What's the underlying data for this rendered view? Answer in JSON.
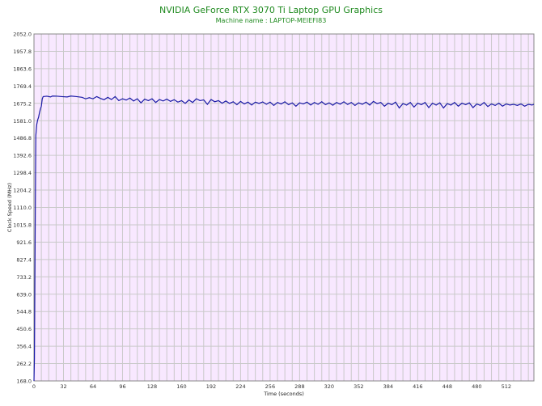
{
  "chart_data": {
    "type": "line",
    "title": "NVIDIA GeForce RTX 3070 Ti Laptop GPU Graphics",
    "subtitle": "Machine name : LAPTOP-MEIEFI83",
    "xlabel": "Time (seconds)",
    "ylabel": "Clock Speed (MHz)",
    "xlim": [
      0,
      542
    ],
    "ylim": [
      168.0,
      2052.0
    ],
    "x_ticks": [
      0,
      32,
      64,
      96,
      128,
      160,
      192,
      224,
      256,
      288,
      320,
      352,
      384,
      416,
      448,
      480,
      512
    ],
    "y_ticks": [
      "168.0",
      "262.2",
      "356.4",
      "450.6",
      "544.8",
      "639.0",
      "733.2",
      "827.4",
      "921.6",
      "1015.8",
      "1110.0",
      "1204.2",
      "1298.4",
      "1392.6",
      "1486.8",
      "1581.0",
      "1675.2",
      "1769.4",
      "1863.6",
      "1957.8",
      "2052.0"
    ],
    "grid": true,
    "colors": {
      "line": "#1a1aa6",
      "plot_bg": "#f8e8ff",
      "grid": "#c9c9c9",
      "title": "#1f8a1f"
    },
    "series": [
      {
        "points": [
          [
            0,
            168
          ],
          [
            0.5,
            290
          ],
          [
            1,
            720
          ],
          [
            1.5,
            1140
          ],
          [
            2,
            1500
          ],
          [
            3,
            1560
          ],
          [
            4,
            1585
          ],
          [
            5,
            1600
          ],
          [
            6,
            1625
          ],
          [
            7,
            1645
          ],
          [
            8,
            1660
          ],
          [
            9,
            1700
          ],
          [
            10,
            1712
          ],
          [
            14,
            1714
          ],
          [
            18,
            1710
          ],
          [
            20,
            1715
          ],
          [
            25,
            1714
          ],
          [
            30,
            1712
          ],
          [
            36,
            1710
          ],
          [
            40,
            1715
          ],
          [
            46,
            1712
          ],
          [
            52,
            1708
          ],
          [
            56,
            1700
          ],
          [
            60,
            1706
          ],
          [
            64,
            1700
          ],
          [
            68,
            1712
          ],
          [
            72,
            1702
          ],
          [
            76,
            1695
          ],
          [
            80,
            1708
          ],
          [
            84,
            1696
          ],
          [
            88,
            1712
          ],
          [
            92,
            1690
          ],
          [
            96,
            1700
          ],
          [
            100,
            1693
          ],
          [
            104,
            1704
          ],
          [
            108,
            1688
          ],
          [
            112,
            1700
          ],
          [
            116,
            1678
          ],
          [
            120,
            1698
          ],
          [
            124,
            1690
          ],
          [
            128,
            1700
          ],
          [
            132,
            1680
          ],
          [
            136,
            1696
          ],
          [
            140,
            1688
          ],
          [
            144,
            1698
          ],
          [
            148,
            1686
          ],
          [
            152,
            1695
          ],
          [
            156,
            1682
          ],
          [
            160,
            1690
          ],
          [
            164,
            1675
          ],
          [
            168,
            1694
          ],
          [
            172,
            1680
          ],
          [
            176,
            1700
          ],
          [
            180,
            1690
          ],
          [
            184,
            1694
          ],
          [
            188,
            1670
          ],
          [
            192,
            1696
          ],
          [
            196,
            1684
          ],
          [
            200,
            1690
          ],
          [
            204,
            1676
          ],
          [
            208,
            1688
          ],
          [
            212,
            1675
          ],
          [
            216,
            1684
          ],
          [
            220,
            1668
          ],
          [
            224,
            1686
          ],
          [
            228,
            1672
          ],
          [
            232,
            1682
          ],
          [
            236,
            1666
          ],
          [
            240,
            1682
          ],
          [
            244,
            1675
          ],
          [
            248,
            1683
          ],
          [
            252,
            1670
          ],
          [
            256,
            1682
          ],
          [
            260,
            1664
          ],
          [
            264,
            1680
          ],
          [
            268,
            1672
          ],
          [
            272,
            1684
          ],
          [
            276,
            1668
          ],
          [
            280,
            1678
          ],
          [
            284,
            1660
          ],
          [
            288,
            1678
          ],
          [
            292,
            1672
          ],
          [
            296,
            1682
          ],
          [
            300,
            1666
          ],
          [
            304,
            1680
          ],
          [
            308,
            1670
          ],
          [
            312,
            1684
          ],
          [
            316,
            1668
          ],
          [
            320,
            1678
          ],
          [
            324,
            1665
          ],
          [
            328,
            1680
          ],
          [
            332,
            1671
          ],
          [
            336,
            1684
          ],
          [
            340,
            1669
          ],
          [
            344,
            1680
          ],
          [
            348,
            1664
          ],
          [
            352,
            1678
          ],
          [
            356,
            1670
          ],
          [
            360,
            1682
          ],
          [
            364,
            1666
          ],
          [
            368,
            1686
          ],
          [
            372,
            1674
          ],
          [
            376,
            1680
          ],
          [
            380,
            1660
          ],
          [
            384,
            1676
          ],
          [
            388,
            1668
          ],
          [
            392,
            1682
          ],
          [
            396,
            1650
          ],
          [
            400,
            1674
          ],
          [
            404,
            1666
          ],
          [
            408,
            1680
          ],
          [
            412,
            1655
          ],
          [
            416,
            1676
          ],
          [
            420,
            1668
          ],
          [
            424,
            1680
          ],
          [
            428,
            1652
          ],
          [
            432,
            1676
          ],
          [
            436,
            1666
          ],
          [
            440,
            1678
          ],
          [
            444,
            1650
          ],
          [
            448,
            1674
          ],
          [
            452,
            1666
          ],
          [
            456,
            1680
          ],
          [
            460,
            1660
          ],
          [
            464,
            1676
          ],
          [
            468,
            1668
          ],
          [
            472,
            1678
          ],
          [
            476,
            1652
          ],
          [
            480,
            1672
          ],
          [
            484,
            1664
          ],
          [
            488,
            1680
          ],
          [
            492,
            1658
          ],
          [
            496,
            1672
          ],
          [
            500,
            1664
          ],
          [
            504,
            1676
          ],
          [
            508,
            1660
          ],
          [
            512,
            1672
          ],
          [
            516,
            1666
          ],
          [
            520,
            1670
          ],
          [
            524,
            1664
          ],
          [
            528,
            1672
          ],
          [
            532,
            1660
          ],
          [
            536,
            1670
          ],
          [
            540,
            1666
          ],
          [
            542,
            1670
          ]
        ]
      }
    ]
  }
}
